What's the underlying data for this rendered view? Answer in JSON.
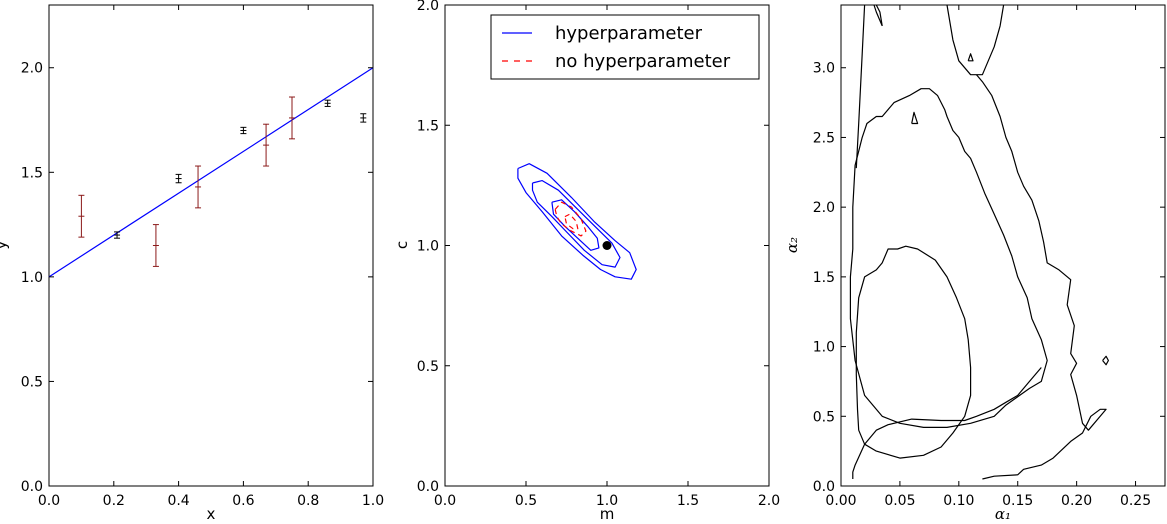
{
  "chart_data": [
    {
      "type": "scatter",
      "xlabel": "x",
      "ylabel": "y",
      "xlim": [
        0.0,
        1.0
      ],
      "ylim": [
        0.0,
        2.3
      ],
      "xticks": [
        "0.0",
        "0.2",
        "0.4",
        "0.6",
        "0.8",
        "1.0"
      ],
      "yticks": [
        "0.0",
        "0.5",
        "1.0",
        "1.5",
        "2.0"
      ],
      "line": {
        "x": [
          0.0,
          1.0
        ],
        "y": [
          1.0,
          2.0
        ],
        "color": "#0000ff"
      },
      "points": [
        {
          "x": 0.1,
          "y": 1.29,
          "err": 0.1,
          "color": "#8b1a1a"
        },
        {
          "x": 0.21,
          "y": 1.2,
          "err": 0.015,
          "color": "#000000"
        },
        {
          "x": 0.33,
          "y": 1.15,
          "err": 0.1,
          "color": "#8b1a1a"
        },
        {
          "x": 0.4,
          "y": 1.47,
          "err": 0.02,
          "color": "#000000"
        },
        {
          "x": 0.46,
          "y": 1.43,
          "err": 0.1,
          "color": "#8b1a1a"
        },
        {
          "x": 0.6,
          "y": 1.7,
          "err": 0.015,
          "color": "#000000"
        },
        {
          "x": 0.67,
          "y": 1.63,
          "err": 0.1,
          "color": "#8b1a1a"
        },
        {
          "x": 0.75,
          "y": 1.76,
          "err": 0.1,
          "color": "#8b1a1a"
        },
        {
          "x": 0.86,
          "y": 1.83,
          "err": 0.015,
          "color": "#000000"
        },
        {
          "x": 0.97,
          "y": 1.76,
          "err": 0.02,
          "color": "#000000"
        }
      ]
    },
    {
      "type": "contour",
      "xlabel": "m",
      "ylabel": "c",
      "xlim": [
        0.0,
        2.0
      ],
      "ylim": [
        0.0,
        2.0
      ],
      "xticks": [
        "0.0",
        "0.5",
        "1.0",
        "1.5",
        "2.0"
      ],
      "yticks": [
        "0.0",
        "0.5",
        "1.0",
        "1.5",
        "2.0"
      ],
      "legend": {
        "placement": "top-right",
        "entries": [
          "hyperparameter",
          "no hyperparameter"
        ]
      },
      "true_point": {
        "x": 1.0,
        "y": 1.0
      },
      "series": [
        {
          "name": "hyperparameter",
          "color": "#0000ff",
          "dashed": false,
          "contours": [
            [
              [
                0.45,
                1.32
              ],
              [
                0.52,
                1.34
              ],
              [
                0.63,
                1.3
              ],
              [
                0.78,
                1.2
              ],
              [
                0.92,
                1.1
              ],
              [
                1.05,
                1.02
              ],
              [
                1.14,
                0.97
              ],
              [
                1.18,
                0.9
              ],
              [
                1.15,
                0.86
              ],
              [
                1.05,
                0.87
              ],
              [
                0.96,
                0.9
              ],
              [
                0.85,
                0.96
              ],
              [
                0.72,
                1.04
              ],
              [
                0.6,
                1.14
              ],
              [
                0.5,
                1.22
              ],
              [
                0.45,
                1.28
              ],
              [
                0.45,
                1.32
              ]
            ],
            [
              [
                0.54,
                1.26
              ],
              [
                0.6,
                1.27
              ],
              [
                0.7,
                1.23
              ],
              [
                0.82,
                1.15
              ],
              [
                0.94,
                1.07
              ],
              [
                1.03,
                1.01
              ],
              [
                1.08,
                0.95
              ],
              [
                1.05,
                0.91
              ],
              [
                0.97,
                0.92
              ],
              [
                0.86,
                0.98
              ],
              [
                0.76,
                1.05
              ],
              [
                0.66,
                1.12
              ],
              [
                0.57,
                1.18
              ],
              [
                0.54,
                1.23
              ],
              [
                0.54,
                1.26
              ]
            ],
            [
              [
                0.66,
                1.18
              ],
              [
                0.72,
                1.19
              ],
              [
                0.8,
                1.14
              ],
              [
                0.88,
                1.08
              ],
              [
                0.94,
                1.03
              ],
              [
                0.95,
                0.99
              ],
              [
                0.9,
                0.98
              ],
              [
                0.82,
                1.03
              ],
              [
                0.74,
                1.08
              ],
              [
                0.67,
                1.13
              ],
              [
                0.66,
                1.18
              ]
            ]
          ]
        },
        {
          "name": "no hyperparameter",
          "color": "#ff0000",
          "dashed": true,
          "contours": [
            [
              [
                0.68,
                1.15
              ],
              [
                0.72,
                1.18
              ],
              [
                0.78,
                1.16
              ],
              [
                0.84,
                1.11
              ],
              [
                0.87,
                1.06
              ],
              [
                0.84,
                1.04
              ],
              [
                0.78,
                1.06
              ],
              [
                0.72,
                1.09
              ],
              [
                0.69,
                1.12
              ],
              [
                0.68,
                1.15
              ]
            ],
            [
              [
                0.74,
                1.12
              ],
              [
                0.77,
                1.13
              ],
              [
                0.81,
                1.1
              ],
              [
                0.82,
                1.07
              ],
              [
                0.79,
                1.07
              ],
              [
                0.75,
                1.09
              ],
              [
                0.74,
                1.12
              ]
            ]
          ]
        }
      ]
    },
    {
      "type": "contour",
      "xlabel": "α₁",
      "ylabel": "α₂",
      "xlim": [
        0.0,
        0.275
      ],
      "ylim": [
        0.0,
        3.45
      ],
      "xticks": [
        "0.00",
        "0.05",
        "0.10",
        "0.15",
        "0.20",
        "0.25"
      ],
      "yticks": [
        "0.0",
        "0.5",
        "1.0",
        "1.5",
        "2.0",
        "2.5",
        "3.0"
      ],
      "series": [
        {
          "color": "#000000",
          "dashed": false,
          "contours": [
            [
              [
                0.01,
                0.05
              ],
              [
                0.01,
                0.1
              ],
              [
                0.012,
                0.15
              ],
              [
                0.02,
                0.3
              ],
              [
                0.03,
                0.4
              ],
              [
                0.04,
                0.44
              ],
              [
                0.06,
                0.48
              ],
              [
                0.085,
                0.47
              ],
              [
                0.105,
                0.47
              ],
              [
                0.115,
                0.5
              ],
              [
                0.13,
                0.55
              ],
              [
                0.14,
                0.6
              ],
              [
                0.15,
                0.65
              ],
              [
                0.16,
                0.75
              ],
              [
                0.17,
                0.85
              ]
            ],
            [
              [
                0.013,
                2.28
              ],
              [
                0.015,
                2.6
              ],
              [
                0.018,
                3.1
              ],
              [
                0.02,
                3.45
              ]
            ],
            [
              [
                0.028,
                3.45
              ],
              [
                0.03,
                3.4
              ],
              [
                0.035,
                3.3
              ]
            ],
            [
              [
                0.035,
                3.3
              ],
              [
                0.033,
                3.4
              ],
              [
                0.03,
                3.45
              ]
            ],
            [
              [
                0.09,
                3.45
              ],
              [
                0.095,
                3.2
              ],
              [
                0.1,
                3.05
              ],
              [
                0.11,
                2.95
              ],
              [
                0.12,
                2.95
              ],
              [
                0.13,
                3.15
              ],
              [
                0.135,
                3.3
              ],
              [
                0.138,
                3.45
              ]
            ],
            [
              [
                0.12,
                0.05
              ],
              [
                0.13,
                0.07
              ],
              [
                0.15,
                0.08
              ],
              [
                0.155,
                0.12
              ],
              [
                0.17,
                0.15
              ],
              [
                0.18,
                0.2
              ],
              [
                0.195,
                0.32
              ],
              [
                0.205,
                0.38
              ],
              [
                0.212,
                0.5
              ],
              [
                0.22,
                0.55
              ],
              [
                0.225,
                0.55
              ],
              [
                0.22,
                0.5
              ],
              [
                0.21,
                0.4
              ],
              [
                0.205,
                0.45
              ],
              [
                0.2,
                0.65
              ],
              [
                0.195,
                0.8
              ],
              [
                0.2,
                0.88
              ],
              [
                0.195,
                0.95
              ],
              [
                0.198,
                1.15
              ],
              [
                0.192,
                1.3
              ],
              [
                0.195,
                1.48
              ],
              [
                0.185,
                1.55
              ],
              [
                0.175,
                1.6
              ],
              [
                0.172,
                1.75
              ],
              [
                0.168,
                1.9
              ],
              [
                0.162,
                2.05
              ],
              [
                0.155,
                2.15
              ],
              [
                0.15,
                2.25
              ],
              [
                0.145,
                2.4
              ],
              [
                0.14,
                2.5
              ],
              [
                0.135,
                2.65
              ],
              [
                0.128,
                2.8
              ],
              [
                0.12,
                2.9
              ],
              [
                0.115,
                2.95
              ]
            ],
            [
              [
                0.008,
                1.5
              ],
              [
                0.01,
                1.7
              ],
              [
                0.01,
                2.0
              ],
              [
                0.012,
                2.3
              ],
              [
                0.018,
                2.5
              ],
              [
                0.022,
                2.6
              ],
              [
                0.03,
                2.65
              ],
              [
                0.035,
                2.65
              ],
              [
                0.045,
                2.75
              ],
              [
                0.058,
                2.8
              ],
              [
                0.068,
                2.85
              ],
              [
                0.075,
                2.85
              ],
              [
                0.082,
                2.8
              ],
              [
                0.088,
                2.7
              ],
              [
                0.09,
                2.65
              ],
              [
                0.095,
                2.55
              ],
              [
                0.1,
                2.5
              ],
              [
                0.105,
                2.4
              ],
              [
                0.11,
                2.35
              ],
              [
                0.115,
                2.25
              ],
              [
                0.122,
                2.1
              ],
              [
                0.13,
                1.95
              ],
              [
                0.138,
                1.8
              ],
              [
                0.145,
                1.65
              ],
              [
                0.15,
                1.5
              ],
              [
                0.158,
                1.35
              ],
              [
                0.162,
                1.2
              ],
              [
                0.17,
                1.05
              ],
              [
                0.175,
                0.9
              ],
              [
                0.17,
                0.75
              ],
              [
                0.16,
                0.7
              ],
              [
                0.15,
                0.64
              ],
              [
                0.14,
                0.58
              ],
              [
                0.13,
                0.5
              ],
              [
                0.11,
                0.45
              ],
              [
                0.09,
                0.42
              ],
              [
                0.07,
                0.42
              ],
              [
                0.05,
                0.45
              ],
              [
                0.035,
                0.5
              ],
              [
                0.02,
                0.65
              ],
              [
                0.012,
                0.9
              ],
              [
                0.008,
                1.2
              ],
              [
                0.008,
                1.5
              ]
            ],
            [
              [
                0.015,
                0.4
              ],
              [
                0.02,
                0.3
              ],
              [
                0.03,
                0.25
              ],
              [
                0.05,
                0.2
              ],
              [
                0.07,
                0.22
              ],
              [
                0.085,
                0.28
              ],
              [
                0.095,
                0.38
              ],
              [
                0.105,
                0.5
              ],
              [
                0.11,
                0.65
              ],
              [
                0.11,
                0.85
              ],
              [
                0.108,
                1.05
              ],
              [
                0.105,
                1.2
              ],
              [
                0.098,
                1.35
              ],
              [
                0.09,
                1.5
              ],
              [
                0.08,
                1.62
              ],
              [
                0.065,
                1.7
              ],
              [
                0.055,
                1.72
              ],
              [
                0.048,
                1.7
              ],
              [
                0.04,
                1.7
              ],
              [
                0.035,
                1.6
              ],
              [
                0.03,
                1.55
              ],
              [
                0.02,
                1.5
              ],
              [
                0.015,
                1.35
              ],
              [
                0.013,
                1.1
              ],
              [
                0.013,
                0.8
              ],
              [
                0.014,
                0.55
              ],
              [
                0.015,
                0.4
              ]
            ],
            [
              [
                0.06,
                2.6
              ],
              [
                0.062,
                2.68
              ],
              [
                0.065,
                2.6
              ],
              [
                0.06,
                2.6
              ]
            ],
            [
              [
                0.108,
                3.05
              ],
              [
                0.11,
                3.1
              ],
              [
                0.112,
                3.05
              ],
              [
                0.108,
                3.05
              ]
            ],
            [
              [
                0.222,
                0.9
              ],
              [
                0.225,
                0.93
              ],
              [
                0.227,
                0.9
              ],
              [
                0.225,
                0.87
              ],
              [
                0.222,
                0.9
              ]
            ]
          ]
        }
      ]
    }
  ]
}
